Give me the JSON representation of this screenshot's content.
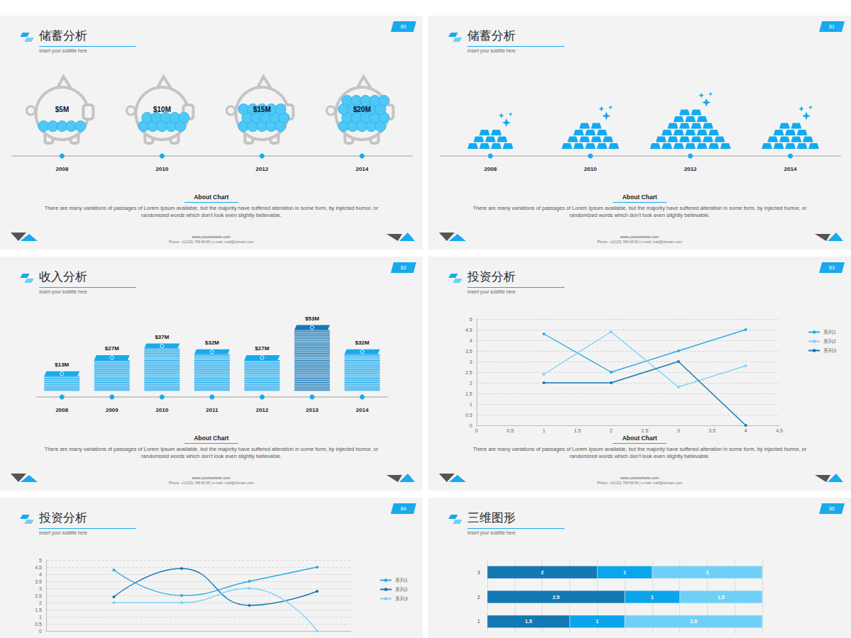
{
  "chart_data": [
    {
      "type": "pictogram",
      "marker": "piggy_bank",
      "title": "储蓄分析",
      "subtitle": "Insert your subtitle here",
      "page_number": 80,
      "categories": [
        "2008",
        "2010",
        "2012",
        "2014"
      ],
      "values": [
        5,
        10,
        15,
        20
      ],
      "value_labels": [
        "$5M",
        "$10M",
        "$15M",
        "$20M"
      ],
      "data_labels": true,
      "tick_labels": "x",
      "color": "#4fc8f6",
      "annotations": {
        "heading": "About Chart",
        "text": "There are many variations of passages of Lorem Ipsum available, but the majority have suffered alteration in some form, by injected humor, or randomized words which don't look even slightly believable.",
        "website": "www.yourwebsite.com",
        "contact": "Phone: +1(123) 789 88 99 | e-mail: mail@domain.com"
      }
    },
    {
      "type": "pictogram",
      "marker": "gold_bar",
      "title": "储蓄分析",
      "subtitle": "Insert your subtitle here",
      "page_number": 81,
      "categories": [
        "2008",
        "2010",
        "2012",
        "2014"
      ],
      "values": [
        9,
        14,
        27,
        14
      ],
      "data_labels": false,
      "tick_labels": "x",
      "color": "#12aaf0",
      "annotations": {
        "heading": "About Chart",
        "text": "There are many variations of passages of Lorem Ipsum available, but the majority have suffered alteration in some form, by injected humor, or randomized words which don't look even slightly believable.",
        "website": "www.yourwebsite.com",
        "contact": "Phone: +1(123) 789 88 99 | e-mail: mail@domain.com"
      }
    },
    {
      "type": "pictogram",
      "marker": "cash_stack",
      "title": "收入分析",
      "subtitle": "Insert your subtitle here",
      "page_number": 82,
      "categories": [
        "2008",
        "2009",
        "2010",
        "2011",
        "2012",
        "2013",
        "2014"
      ],
      "values": [
        13,
        27,
        37,
        32,
        27,
        53,
        32
      ],
      "value_labels": [
        "$13M",
        "$27M",
        "$37M",
        "$32M",
        "$27M",
        "$53M",
        "$32M"
      ],
      "colors": [
        "#18a9ee",
        "#18a9ee",
        "#18a9ee",
        "#18a9ee",
        "#18a9ee",
        "#1479b8",
        "#18a9ee"
      ],
      "data_labels": true,
      "tick_labels": "x",
      "annotations": {
        "heading": "About Chart",
        "text": "There are many variations of passages of Lorem Ipsum available, but the majority have suffered alteration in some form, by injected humor, or randomized words which don't look even slightly believable.",
        "website": "www.yourwebsite.com",
        "contact": "Phone: +1(123) 789 88 99 | e-mail: mail@domain.com"
      }
    },
    {
      "type": "line",
      "marker": "circle",
      "title": "投资分析",
      "subtitle": "Insert your subtitle here",
      "page_number": 83,
      "x": [
        1,
        2,
        3,
        4
      ],
      "series": [
        {
          "name": "系列1",
          "color": "#29abe2",
          "values": [
            4.3,
            2.5,
            3.5,
            4.5
          ]
        },
        {
          "name": "系列2",
          "color": "#7fd3f7",
          "values": [
            2.4,
            4.4,
            1.8,
            2.8
          ]
        },
        {
          "name": "系列3",
          "color": "#1478b4",
          "values": [
            2,
            2,
            3,
            0
          ]
        }
      ],
      "xlim": [
        0,
        4.5
      ],
      "xticks": [
        0,
        0.5,
        1,
        1.5,
        2,
        2.5,
        3,
        3.5,
        4,
        4.5
      ],
      "ylim": [
        0,
        5
      ],
      "yticks": [
        0,
        0.5,
        1,
        1.5,
        2,
        2.5,
        3,
        3.5,
        4,
        4.5,
        5
      ],
      "grid": true,
      "legend": "right",
      "annotations": {
        "heading": "About Chart",
        "text": "There are many variations of passages of Lorem Ipsum available, but the majority have suffered alteration in some form, by injected humor, or randomized words which don't look even slightly believable.",
        "website": "www.yourwebsite.com",
        "contact": "Phone: +1(123) 789 88 99 | e-mail: mail@domain.com"
      }
    },
    {
      "type": "line",
      "marker": "circle",
      "line_style": "smooth",
      "title": "投资分析",
      "subtitle": "Insert your subtitle here",
      "page_number": 84,
      "x": [
        1,
        2,
        3,
        4
      ],
      "series": [
        {
          "name": "系列1",
          "color": "#29abe2",
          "values": [
            4.3,
            2.5,
            3.5,
            4.5
          ]
        },
        {
          "name": "系列2",
          "color": "#1478b4",
          "values": [
            2.4,
            4.4,
            1.8,
            2.8
          ]
        },
        {
          "name": "系列3",
          "color": "#7fd3f7",
          "values": [
            2,
            2,
            3,
            0
          ]
        }
      ],
      "xlim": [
        0,
        4.5
      ],
      "ylim": [
        0,
        5
      ],
      "yticks": [
        0,
        0.5,
        1,
        1.5,
        2,
        2.5,
        3,
        3.5,
        4,
        4.5,
        5
      ],
      "grid": true,
      "legend": "right",
      "tick_labels": "y"
    },
    {
      "type": "bar",
      "orientation": "horizontal",
      "stacked": true,
      "data_labels": true,
      "title": "三维图形",
      "subtitle": "Insert your subtitle here",
      "page_number": 85,
      "categories": [
        "1",
        "2",
        "3"
      ],
      "series": [
        {
          "color": "#1478b4",
          "values": [
            1.5,
            2.5,
            2
          ]
        },
        {
          "color": "#0ba5ec",
          "values": [
            1,
            1,
            1
          ]
        },
        {
          "color": "#6fd0f7",
          "values": [
            2.5,
            1.5,
            2
          ]
        }
      ],
      "xlim": [
        0,
        5
      ],
      "xticks": [
        0,
        0.5,
        1,
        1.5,
        2,
        2.5,
        3,
        3.5,
        4,
        4.5,
        5
      ],
      "grid": true,
      "tick_labels": "y"
    }
  ]
}
